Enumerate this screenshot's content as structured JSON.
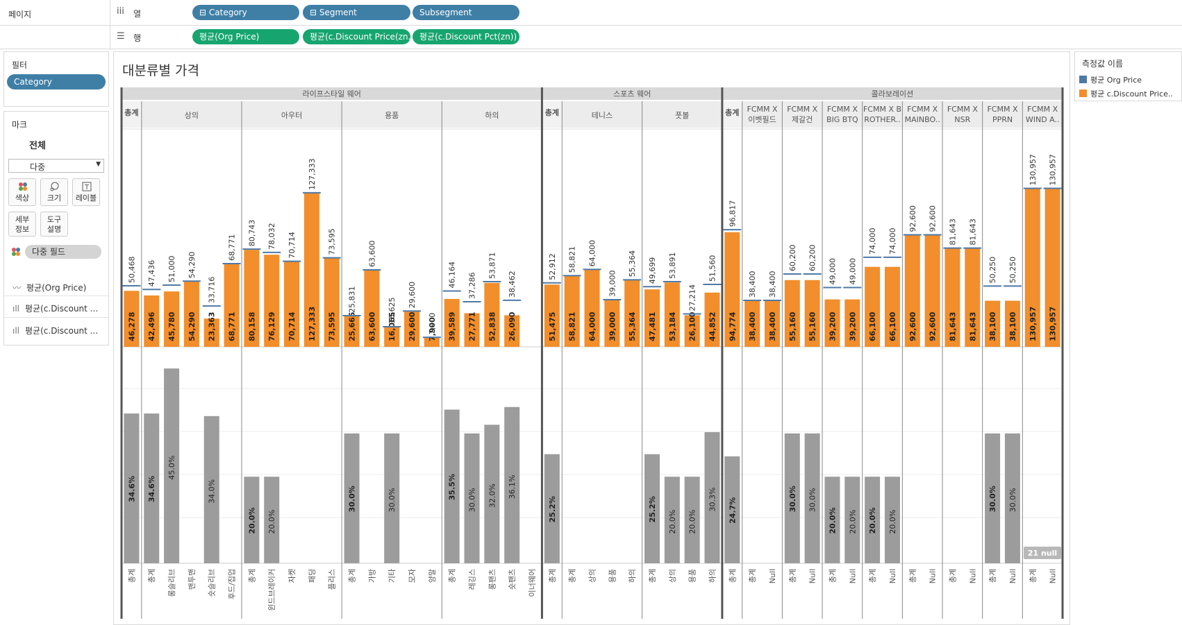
{
  "shelves": {
    "pages_label": "페이지",
    "columns_label": "열",
    "rows_label": "행",
    "columns": [
      "Category",
      "Segment",
      "Subsegment"
    ],
    "rows": [
      "평균(Org Price)",
      "평균(c.Discount Price(zn..",
      "평균(c.Discount Pct(zn))"
    ]
  },
  "filters": {
    "title": "필터",
    "items": [
      "Category"
    ]
  },
  "marks": {
    "title": "마크",
    "all_label": "전체",
    "mark_type": "다중",
    "buttons": [
      "색상",
      "크기",
      "레이블",
      "세부\n정보",
      "도구\n설명"
    ],
    "multi_field": "다중 필드",
    "fields": [
      "평균(Org Price)",
      "평균(c.Discount ...",
      "평균(c.Discount ..."
    ]
  },
  "sheet_title": "대분류별 가격",
  "legend": {
    "title": "측정값 이름",
    "items": [
      {
        "label": "평균 Org Price",
        "color": "#4e79a7"
      },
      {
        "label": "평균 c.Discount Price..",
        "color": "#f28e2b"
      }
    ]
  },
  "null_badge": "21 null",
  "colors": {
    "org": "#4e79a7",
    "disc": "#f28e2b",
    "pct": "#9c9c9c",
    "header_bg": "#d9d9d9"
  },
  "chart_data": {
    "type": "bar",
    "top_ylim": [
      0,
      180000
    ],
    "bottom_ylim": [
      0,
      0.5
    ],
    "categories": [
      {
        "name": "라이프스타일 웨어",
        "segments": [
          {
            "name": "총계",
            "total": true,
            "subs": [
              {
                "label": "총계",
                "org": 50468,
                "disc": 46278,
                "pct": 0.346
              }
            ]
          },
          {
            "name": "상의",
            "subs": [
              {
                "label": "총계",
                "org": 47436,
                "disc": 42496,
                "pct": 0.346
              },
              {
                "label": "롱슬리브",
                "org": 51000,
                "disc": 45780,
                "pct": 0.45
              },
              {
                "label": "맨투맨",
                "org": 54290,
                "disc": 54290,
                "pct": null
              },
              {
                "label": "숏슬리브",
                "org": 33716,
                "disc": 23363,
                "pct": 0.34
              },
              {
                "label": "후드/집업",
                "org": 68771,
                "disc": 68771,
                "pct": null
              }
            ]
          },
          {
            "name": "아우터",
            "subs": [
              {
                "label": "총계",
                "org": 80743,
                "disc": 80158,
                "pct": 0.2
              },
              {
                "label": "윈드브레이커",
                "org": 78032,
                "disc": 76129,
                "pct": 0.2
              },
              {
                "label": "자켓",
                "org": 70714,
                "disc": 70714,
                "pct": null
              },
              {
                "label": "패딩",
                "org": 127333,
                "disc": 127333,
                "pct": null
              },
              {
                "label": "플리스",
                "org": 73595,
                "disc": 73595,
                "pct": null
              }
            ]
          },
          {
            "name": "용품",
            "subs": [
              {
                "label": "총계",
                "org": 25831,
                "disc": 25665,
                "pct": 0.3
              },
              {
                "label": "가방",
                "org": 63600,
                "disc": 63600,
                "pct": null
              },
              {
                "label": "기타",
                "org": 16625,
                "disc": 16065,
                "pct": 0.3
              },
              {
                "label": "모자",
                "org": 29600,
                "disc": 29600,
                "pct": null
              },
              {
                "label": "양말",
                "org": 7900,
                "disc": 7900,
                "pct": null
              }
            ]
          },
          {
            "name": "하의",
            "subs": [
              {
                "label": "총계",
                "org": 46164,
                "disc": 39589,
                "pct": 0.355
              },
              {
                "label": "레깅스",
                "org": 37286,
                "disc": 27771,
                "pct": 0.3
              },
              {
                "label": "롱팬츠",
                "org": 53871,
                "disc": 52838,
                "pct": 0.32
              },
              {
                "label": "숏팬츠",
                "org": 38462,
                "disc": 26090,
                "pct": 0.361
              },
              {
                "label": "이너웨어",
                "org": null,
                "disc": null,
                "pct": null
              }
            ]
          }
        ]
      },
      {
        "name": "스포츠 웨어",
        "segments": [
          {
            "name": "총계",
            "total": true,
            "subs": [
              {
                "label": "총계",
                "org": 52912,
                "disc": 51475,
                "pct": 0.252
              }
            ]
          },
          {
            "name": "테니스",
            "subs": [
              {
                "label": "총계",
                "org": 58821,
                "disc": 58821,
                "pct": null
              },
              {
                "label": "상의",
                "org": 64000,
                "disc": 64000,
                "pct": null
              },
              {
                "label": "용품",
                "org": 39000,
                "disc": 39000,
                "pct": null
              },
              {
                "label": "하의",
                "org": 55364,
                "disc": 55364,
                "pct": null
              }
            ]
          },
          {
            "name": "풋볼",
            "subs": [
              {
                "label": "총계",
                "org": 49699,
                "disc": 47481,
                "pct": 0.252
              },
              {
                "label": "상의",
                "org": 53891,
                "disc": 53184,
                "pct": 0.2
              },
              {
                "label": "용품",
                "org": 27214,
                "disc": 26100,
                "pct": 0.2
              },
              {
                "label": "하의",
                "org": 51560,
                "disc": 44852,
                "pct": 0.303
              }
            ]
          }
        ]
      },
      {
        "name": "콜라보레이션",
        "segments": [
          {
            "name": "총계",
            "total": true,
            "subs": [
              {
                "label": "총계",
                "org": 96817,
                "disc": 94774,
                "pct": 0.247
              }
            ]
          },
          {
            "name": "FCMM X\n이벳필드",
            "subs": [
              {
                "label": "총계",
                "org": 38400,
                "disc": 38400,
                "pct": null
              },
              {
                "label": "Null",
                "org": 38400,
                "disc": 38400,
                "pct": null
              }
            ]
          },
          {
            "name": "FCMM X\n제갈건",
            "subs": [
              {
                "label": "총계",
                "org": 60200,
                "disc": 55160,
                "pct": 0.3
              },
              {
                "label": "Null",
                "org": 60200,
                "disc": 55160,
                "pct": 0.3
              }
            ]
          },
          {
            "name": "FCMM X\nBIG BTQ",
            "subs": [
              {
                "label": "총계",
                "org": 49000,
                "disc": 39200,
                "pct": 0.2
              },
              {
                "label": "Null",
                "org": 49000,
                "disc": 39200,
                "pct": 0.2
              }
            ]
          },
          {
            "name": "FCMM X B\nROTHER..",
            "subs": [
              {
                "label": "총계",
                "org": 74000,
                "disc": 66100,
                "pct": 0.2
              },
              {
                "label": "Null",
                "org": 74000,
                "disc": 66100,
                "pct": 0.2
              }
            ]
          },
          {
            "name": "FCMM X\nMAINBO..",
            "subs": [
              {
                "label": "총계",
                "org": 92600,
                "disc": 92600,
                "pct": null
              },
              {
                "label": "Null",
                "org": 92600,
                "disc": 92600,
                "pct": null
              }
            ]
          },
          {
            "name": "FCMM X\nNSR",
            "subs": [
              {
                "label": "총계",
                "org": 81643,
                "disc": 81643,
                "pct": null
              },
              {
                "label": "Null",
                "org": 81643,
                "disc": 81643,
                "pct": null
              }
            ]
          },
          {
            "name": "FCMM X\nPPRN",
            "subs": [
              {
                "label": "총계",
                "org": 50250,
                "disc": 38100,
                "pct": 0.3
              },
              {
                "label": "Null",
                "org": 50250,
                "disc": 38100,
                "pct": 0.3
              }
            ]
          },
          {
            "name": "FCMM X\nWIND A..",
            "subs": [
              {
                "label": "총계",
                "org": 130957,
                "disc": 130957,
                "pct": null
              },
              {
                "label": "Null",
                "org": 130957,
                "disc": 130957,
                "pct": null
              }
            ]
          }
        ]
      }
    ]
  }
}
